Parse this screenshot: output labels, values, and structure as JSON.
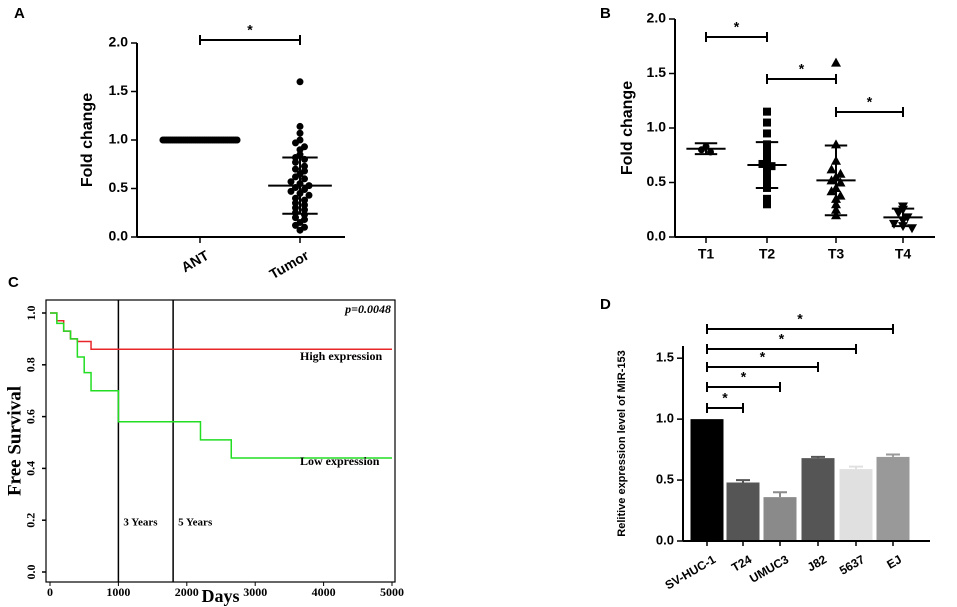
{
  "chart_data": [
    {
      "type": "dot",
      "panel": "A",
      "y_label": "Fold change",
      "categories": [
        "ANT",
        "Tumor"
      ],
      "values": [
        [
          1,
          1,
          1,
          1,
          1,
          1,
          1,
          1,
          1,
          1,
          1,
          1,
          1,
          1,
          1,
          1,
          1,
          1,
          1,
          1,
          1,
          1,
          1,
          1,
          1,
          1,
          1,
          1,
          1,
          1,
          1,
          1,
          1,
          1,
          1,
          1,
          1,
          1,
          1,
          1
        ],
        [
          1.6,
          1.14,
          1.07,
          1.0,
          0.97,
          0.93,
          0.9,
          0.85,
          0.82,
          0.8,
          0.77,
          0.73,
          0.7,
          0.68,
          0.65,
          0.62,
          0.6,
          0.57,
          0.55,
          0.53,
          0.51,
          0.49,
          0.47,
          0.45,
          0.43,
          0.4,
          0.38,
          0.35,
          0.33,
          0.3,
          0.28,
          0.25,
          0.23,
          0.2,
          0.18,
          0.15,
          0.12,
          0.1,
          0.07
        ]
      ],
      "markers": [
        "circle",
        "circle"
      ],
      "mean": [
        1.0,
        0.53
      ],
      "sd": [
        0,
        0.29
      ],
      "ylim": [
        0,
        2.0
      ],
      "yticks": [
        {
          "value": 0,
          "label": "0.0"
        },
        0.5,
        {
          "value": 1,
          "label": "1.0"
        },
        1.5,
        {
          "value": 2,
          "label": "2.0"
        }
      ],
      "comparisons": [
        {
          "pair": [
            "ANT",
            "Tumor"
          ],
          "label": "*"
        }
      ]
    },
    {
      "type": "dot",
      "panel": "B",
      "y_label": "Fold change",
      "categories": [
        "T1",
        "T2",
        "T3",
        "T4"
      ],
      "values": [
        [
          0.83,
          0.8,
          0.78
        ],
        [
          1.15,
          1.05,
          0.95,
          0.85,
          0.8,
          0.75,
          0.7,
          0.67,
          0.65,
          0.62,
          0.55,
          0.5,
          0.45,
          0.35,
          0.3
        ],
        [
          1.6,
          0.85,
          0.7,
          0.62,
          0.58,
          0.55,
          0.52,
          0.5,
          0.45,
          0.42,
          0.38,
          0.35,
          0.3,
          0.25,
          0.2
        ],
        [
          0.28,
          0.25,
          0.22,
          0.18,
          0.15,
          0.12,
          0.1,
          0.08
        ]
      ],
      "markers": [
        "circle",
        "square",
        "triangle",
        "triangle-down"
      ],
      "mean": [
        0.81,
        0.66,
        0.52,
        0.18
      ],
      "sd": [
        0.05,
        0.21,
        0.32,
        0.08
      ],
      "ylim": [
        0,
        2.0
      ],
      "yticks": [
        {
          "value": 0,
          "label": "0.0"
        },
        0.5,
        {
          "value": 1,
          "label": "1.0"
        },
        1.5,
        {
          "value": 2,
          "label": "2.0"
        }
      ],
      "comparisons": [
        {
          "pair": [
            "T1",
            "T2"
          ],
          "label": "*"
        },
        {
          "pair": [
            "T2",
            "T3"
          ],
          "label": "*"
        },
        {
          "pair": [
            "T3",
            "T4"
          ],
          "label": "*"
        }
      ]
    },
    {
      "type": "step",
      "panel": "C",
      "x_label": "Days",
      "y_label": "Free Survival",
      "annotation": "p=0.0048",
      "series": [
        {
          "name": "High expression",
          "color": "#e8262a",
          "x": [
            0,
            100,
            200,
            300,
            400,
            600,
            5000
          ],
          "values": [
            1.0,
            0.97,
            0.93,
            0.9,
            0.89,
            0.86,
            0.86
          ]
        },
        {
          "name": "Low expression",
          "color": "#22dd22",
          "x": [
            0,
            100,
            200,
            300,
            400,
            500,
            600,
            1000,
            1800,
            2200,
            2650,
            5000
          ],
          "values": [
            1.0,
            0.96,
            0.93,
            0.9,
            0.83,
            0.77,
            0.7,
            0.58,
            0.58,
            0.51,
            0.44,
            0.44
          ]
        }
      ],
      "reference_lines": [
        {
          "x": 1000,
          "label": "3 Years"
        },
        {
          "x": 1800,
          "label": "5 Years"
        }
      ],
      "xlim": [
        0,
        5000
      ],
      "xticks": [
        0,
        1000,
        2000,
        3000,
        4000,
        5000
      ],
      "ylim": [
        0,
        1.0
      ],
      "yticks": [
        {
          "value": 0,
          "label": "0.0"
        },
        0.2,
        0.4,
        0.6,
        0.8,
        {
          "value": 1,
          "label": "1.0"
        }
      ]
    },
    {
      "type": "bar",
      "panel": "D",
      "y_label": "Relitive expression level of MiR-153",
      "categories": [
        "SV-HUC-1",
        "T24",
        "UMUC3",
        "J82",
        "5637",
        "EJ"
      ],
      "values": [
        1.0,
        0.48,
        0.36,
        0.68,
        0.59,
        0.69
      ],
      "errors": [
        0,
        0.02,
        0.04,
        0.01,
        0.02,
        0.02
      ],
      "colors": [
        "#000000",
        "#555555",
        "#8a8a8a",
        "#555555",
        "#e0e0e0",
        "#999999"
      ],
      "ylim": [
        0,
        1.6
      ],
      "yticks": [
        {
          "value": 0,
          "label": "0.0"
        },
        0.5,
        {
          "value": 1,
          "label": "1.0"
        },
        1.5
      ],
      "comparisons": [
        {
          "pair": [
            "SV-HUC-1",
            "T24"
          ],
          "label": "*"
        },
        {
          "pair": [
            "SV-HUC-1",
            "UMUC3"
          ],
          "label": "*"
        },
        {
          "pair": [
            "SV-HUC-1",
            "J82"
          ],
          "label": "*"
        },
        {
          "pair": [
            "SV-HUC-1",
            "5637"
          ],
          "label": "*"
        },
        {
          "pair": [
            "SV-HUC-1",
            "EJ"
          ],
          "label": "*"
        }
      ]
    }
  ]
}
